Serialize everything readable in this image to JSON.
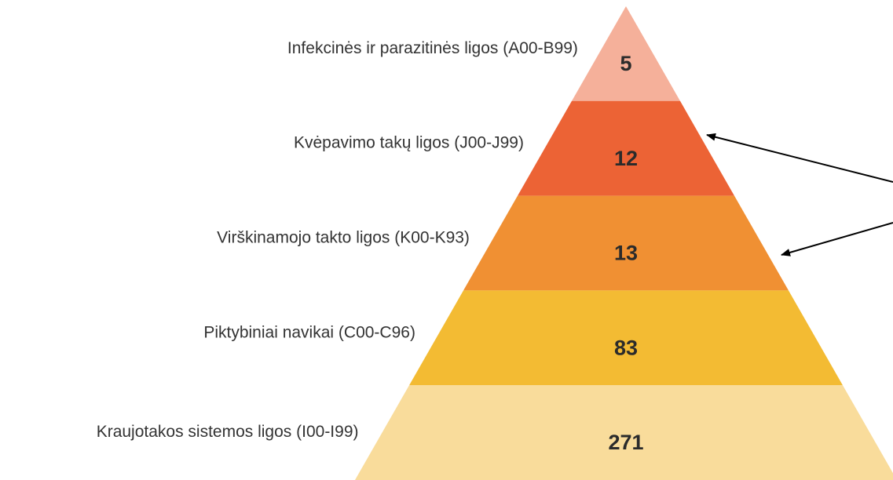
{
  "chart_data": {
    "type": "pyramid",
    "categories": [
      "Infekcinės ir parazitinės ligos (A00-B99)",
      "Kvėpavimo takų ligos (J00-J99)",
      "Virškinamojo takto ligos (K00-K93)",
      "Piktybiniai navikai (C00-C96)",
      "Kraujotakos sistemos ligos (I00-I99)"
    ],
    "values": [
      5,
      12,
      13,
      83,
      271
    ],
    "colors": [
      "#f5b09a",
      "#ec6335",
      "#f09033",
      "#f3bb33",
      "#f9dc9b"
    ]
  }
}
